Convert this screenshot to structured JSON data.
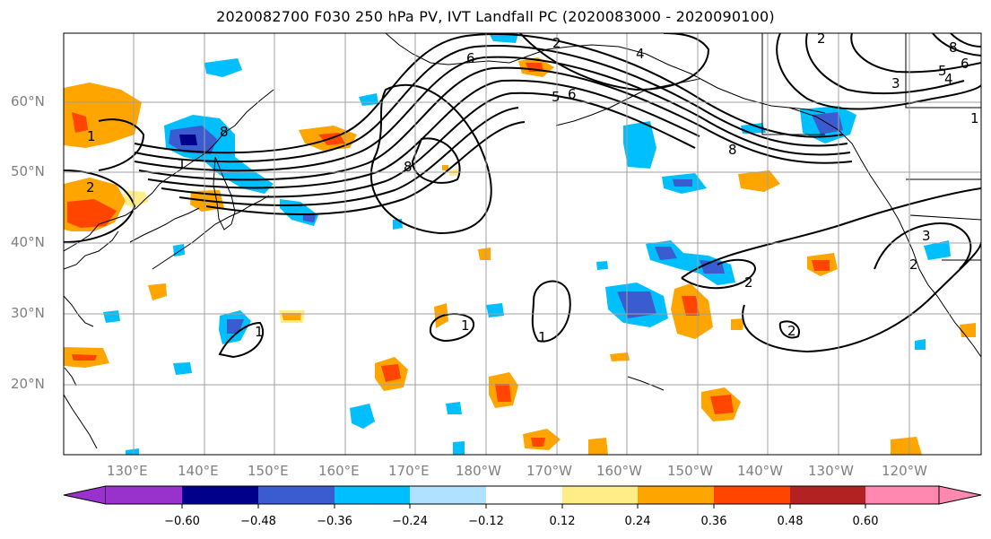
{
  "title": "2020082700 F030 250 hPa PV, IVT Landfall PC (2020083000 - 2020090100)",
  "map": {
    "lat_labels": [
      "60°N",
      "50°N",
      "40°N",
      "30°N",
      "20°N"
    ],
    "lon_labels": [
      "130°E",
      "140°E",
      "150°E",
      "160°E",
      "170°E",
      "180°W",
      "170°W",
      "160°W",
      "150°W",
      "140°W",
      "130°W",
      "120°W"
    ],
    "contour_labels": [
      "1",
      "2",
      "1",
      "8",
      "6",
      "5",
      "6",
      "2",
      "4",
      "8",
      "2",
      "4",
      "3",
      "1",
      "5",
      "6",
      "8",
      "8",
      "1",
      "1",
      "1",
      "2",
      "3",
      "2",
      "2"
    ],
    "contour_color": "#000000",
    "grid_color": "#a0a0a0"
  },
  "colorbar": {
    "colors": [
      "#9932cc",
      "#00008b",
      "#3b5bd0",
      "#00bfff",
      "#b0e2ff",
      "#ffffff",
      "#ffee88",
      "#ffa500",
      "#ff4500",
      "#b22222",
      "#ff88b0"
    ],
    "ticks": [
      "−0.60",
      "−0.48",
      "−0.36",
      "−0.24",
      "−0.12",
      "0.12",
      "0.24",
      "0.36",
      "0.48",
      "0.60"
    ]
  }
}
